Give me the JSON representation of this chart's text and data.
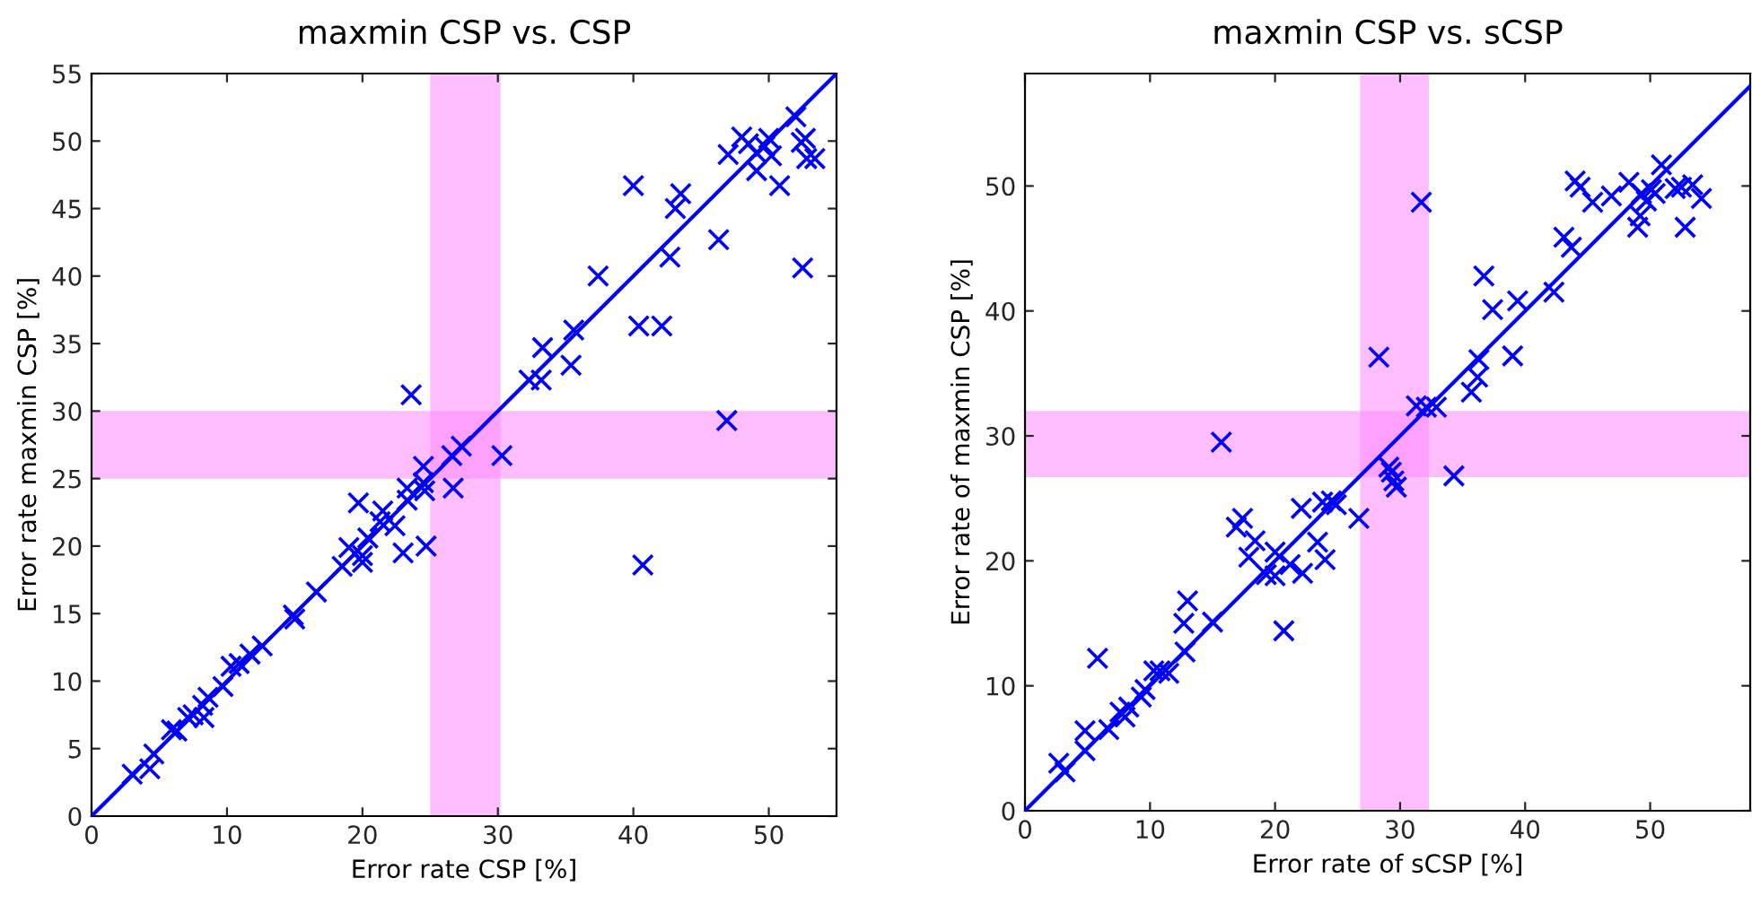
{
  "chart_data": [
    {
      "type": "scatter",
      "title": "maxmin CSP vs. CSP",
      "xlabel": "Error rate CSP [%]",
      "ylabel": "Error rate maxmin CSP [%]",
      "xlim": [
        0,
        55
      ],
      "ylim": [
        0,
        55
      ],
      "xticks": [
        0,
        10,
        20,
        30,
        40,
        50
      ],
      "yticks": [
        0,
        5,
        10,
        15,
        20,
        25,
        30,
        35,
        40,
        45,
        50,
        55
      ],
      "grid": false,
      "legend": false,
      "marker": "cross",
      "bands": [
        {
          "axis": "x",
          "from": 25,
          "to": 30.2,
          "color": "#ff88ff"
        },
        {
          "axis": "y",
          "from": 25,
          "to": 30,
          "color": "#ff88ff"
        }
      ],
      "series": [
        {
          "type": "line",
          "color": "#0000ff",
          "marker": "none",
          "line_style": "solid",
          "x": [
            0,
            55
          ],
          "values": [
            0,
            55
          ]
        },
        {
          "type": "scatter",
          "color": "#0000ff",
          "x": [
            23.6,
            24.5,
            26.6,
            27.3,
            30.3,
            32.3,
            33.2,
            33.3,
            35.4,
            35.6,
            37.4,
            40.0,
            40.4,
            42.1,
            42.7,
            43.1,
            43.5,
            46.3,
            46.9,
            47.0,
            48.0,
            48.5,
            49.1,
            49.1,
            49.7,
            50.0,
            50.2,
            50.8,
            52.0,
            52.4,
            52.5,
            52.7,
            52.8,
            53.4,
            26.7,
            24.5,
            24.6,
            23.3,
            23.3,
            19.7,
            21.5,
            21.3,
            22.4,
            20.4,
            19.0,
            20.0,
            20.0,
            23.0,
            24.7,
            40.7,
            18.5,
            16.6,
            15.0,
            14.9,
            12.6,
            11.7,
            10.9,
            10.3,
            9.7,
            8.6,
            8.2,
            8.3,
            7.5,
            7.1,
            6.3,
            5.9,
            4.6,
            4.3,
            3.0
          ],
          "values": [
            31.2,
            25.9,
            26.7,
            27.4,
            26.7,
            32.3,
            32.3,
            34.7,
            33.4,
            36.0,
            40.0,
            46.7,
            36.3,
            36.3,
            41.4,
            45.0,
            46.1,
            42.7,
            29.3,
            49.0,
            50.3,
            49.8,
            47.8,
            49.1,
            49.6,
            50.2,
            48.9,
            46.7,
            51.8,
            49.9,
            40.6,
            50.2,
            48.7,
            48.7,
            24.3,
            24.7,
            24.1,
            24.3,
            23.4,
            23.2,
            22.6,
            21.8,
            21.5,
            20.6,
            19.9,
            18.8,
            19.3,
            19.5,
            20.0,
            18.6,
            18.5,
            16.6,
            14.6,
            14.9,
            12.6,
            12.0,
            11.3,
            11.1,
            9.6,
            8.8,
            8.2,
            7.3,
            7.5,
            7.3,
            6.3,
            6.4,
            4.6,
            3.5,
            3.1
          ]
        }
      ]
    },
    {
      "type": "scatter",
      "title": "maxmin CSP vs. sCSP",
      "xlabel": "Error rate of sCSP [%]",
      "ylabel": "Error rate of maxmin CSP [%]",
      "xlim": [
        0,
        58
      ],
      "ylim": [
        0,
        59
      ],
      "xticks": [
        0,
        10,
        20,
        30,
        40,
        50
      ],
      "yticks": [
        0,
        10,
        20,
        30,
        40,
        50
      ],
      "grid": false,
      "legend": false,
      "marker": "cross",
      "bands": [
        {
          "axis": "x",
          "from": 26.8,
          "to": 32.3,
          "color": "#ff88ff"
        },
        {
          "axis": "y",
          "from": 26.7,
          "to": 32,
          "color": "#ff88ff"
        }
      ],
      "series": [
        {
          "type": "line",
          "color": "#0000ff",
          "marker": "none",
          "line_style": "solid",
          "x": [
            0,
            58
          ],
          "values": [
            0,
            58
          ]
        },
        {
          "type": "scatter",
          "color": "#0000ff",
          "x": [
            15.7,
            28.3,
            31.7,
            31.3,
            32.1,
            32.9,
            34.3,
            35.7,
            36.2,
            36.3,
            36.7,
            37.4,
            39.0,
            39.4,
            42.3,
            43.1,
            43.7,
            44.0,
            44.4,
            45.4,
            46.9,
            48.3,
            49.0,
            49.2,
            49.3,
            49.7,
            50.1,
            50.4,
            50.9,
            52.0,
            52.5,
            52.8,
            53.4,
            54.1,
            29.3,
            29.5,
            29.7,
            29.1,
            26.7,
            24.5,
            23.8,
            24.9,
            22.1,
            23.4,
            24.0,
            22.2,
            21.2,
            20.7,
            20.0,
            20.0,
            19.3,
            18.4,
            17.9,
            17.4,
            16.9,
            15.0,
            13.0,
            12.7,
            12.8,
            11.5,
            10.8,
            10.3,
            9.6,
            9.3,
            8.3,
            7.6,
            8.0,
            6.7,
            5.8,
            4.8,
            4.8,
            3.2,
            2.7
          ],
          "values": [
            29.5,
            36.3,
            48.7,
            32.4,
            32.3,
            32.3,
            26.8,
            33.5,
            34.7,
            36.1,
            42.8,
            40.1,
            36.4,
            40.8,
            41.5,
            45.9,
            45.1,
            50.4,
            49.9,
            48.7,
            49.2,
            50.3,
            46.7,
            47.6,
            49.4,
            48.8,
            49.7,
            49.4,
            51.7,
            49.8,
            49.9,
            46.7,
            50.1,
            49.0,
            27.1,
            26.4,
            25.9,
            27.5,
            23.4,
            24.8,
            24.7,
            24.5,
            24.2,
            21.5,
            20.1,
            19.0,
            19.7,
            14.4,
            20.7,
            18.8,
            18.9,
            21.6,
            20.3,
            23.4,
            22.7,
            15.1,
            16.8,
            15.0,
            12.7,
            11.0,
            11.2,
            11.2,
            9.7,
            9.1,
            8.3,
            7.9,
            7.5,
            6.5,
            12.2,
            6.4,
            4.8,
            3.1,
            3.8
          ]
        }
      ]
    }
  ]
}
